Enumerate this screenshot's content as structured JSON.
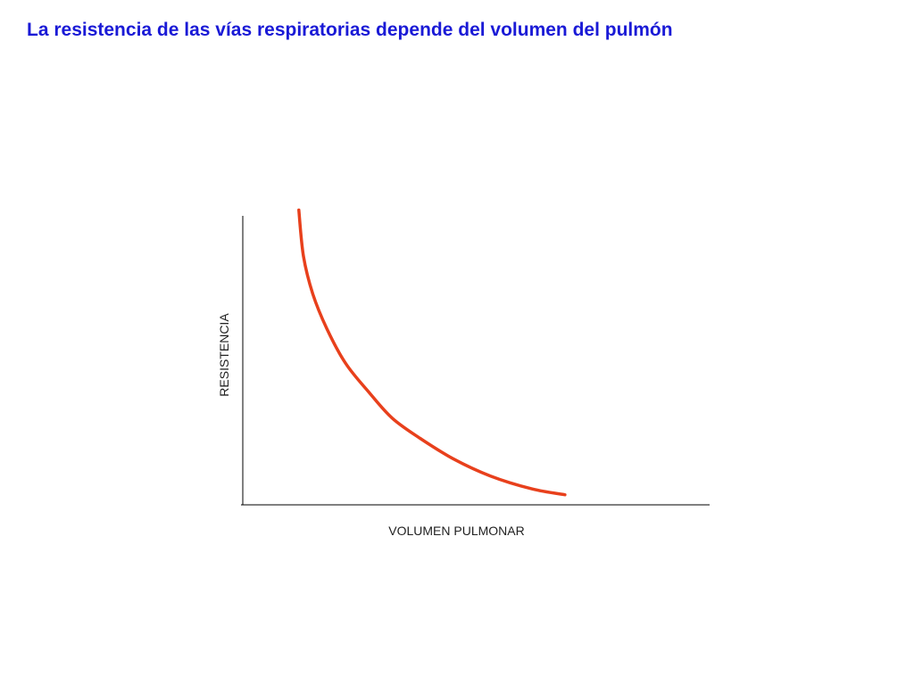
{
  "slide": {
    "title": "La resistencia de las vías respiratorias depende del volumen del pulmón"
  },
  "colors": {
    "title": "#1a1ad6",
    "curve": "#e8401c",
    "axis": "#000000"
  },
  "chart_data": {
    "type": "line",
    "title": "",
    "xlabel": "VOLUMEN PULMONAR",
    "ylabel": "RESISTENCIA",
    "grid": false,
    "legend": "none",
    "xlim": [
      0,
      10
    ],
    "ylim": [
      0,
      10
    ],
    "series": [
      {
        "x": [
          1.2,
          1.3,
          1.5,
          1.8,
          2.2,
          2.7,
          3.2,
          3.8,
          4.5,
          5.3,
          6.2,
          6.9
        ],
        "y": [
          10.2,
          8.6,
          7.3,
          6.1,
          4.9,
          3.9,
          3.0,
          2.3,
          1.6,
          1.0,
          0.55,
          0.35
        ]
      }
    ]
  }
}
